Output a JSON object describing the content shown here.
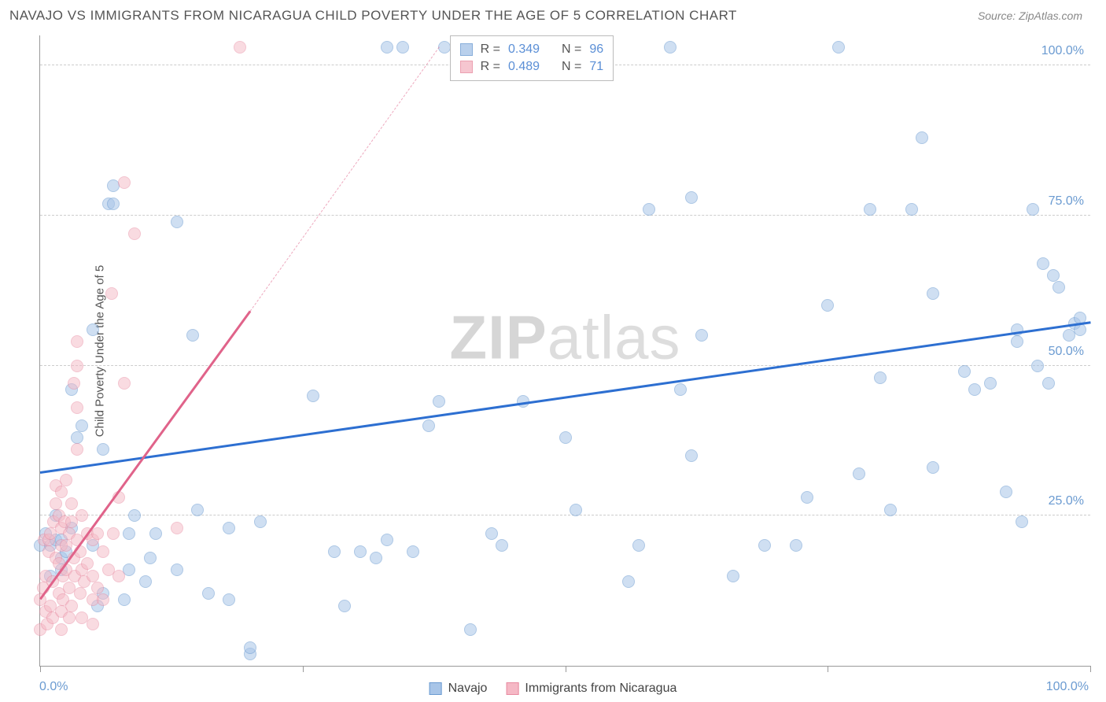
{
  "header": {
    "title": "NAVAJO VS IMMIGRANTS FROM NICARAGUA CHILD POVERTY UNDER THE AGE OF 5 CORRELATION CHART",
    "source_prefix": "Source: ",
    "source_name": "ZipAtlas.com"
  },
  "y_axis_label": "Child Poverty Under the Age of 5",
  "watermark": {
    "part1": "ZIP",
    "part2": "atlas"
  },
  "chart": {
    "type": "scatter",
    "xlim": [
      0,
      100
    ],
    "ylim": [
      0,
      105
    ],
    "x_ticks": [
      0,
      25,
      50,
      75,
      100
    ],
    "y_gridlines": [
      25,
      50,
      75,
      100
    ],
    "x_axis_labels": [
      {
        "value": 0,
        "text": "0.0%"
      },
      {
        "value": 100,
        "text": "100.0%"
      }
    ],
    "y_axis_labels": [
      {
        "value": 25,
        "text": "25.0%"
      },
      {
        "value": 50,
        "text": "50.0%"
      },
      {
        "value": 75,
        "text": "75.0%"
      },
      {
        "value": 100,
        "text": "100.0%"
      }
    ],
    "background_color": "#ffffff",
    "grid_color": "#cccccc",
    "point_radius": 8,
    "point_stroke_width": 1.2,
    "series": [
      {
        "name": "Navajo",
        "fill_color": "#a8c5e8",
        "stroke_color": "#6b9bd1",
        "fill_opacity": 0.55,
        "trend": {
          "color": "#2d6fd1",
          "x1": 0,
          "y1": 32,
          "x2": 100,
          "y2": 57,
          "dashed_extension": false
        },
        "stats": {
          "R": "0.349",
          "N": "96"
        },
        "points": [
          [
            0,
            20
          ],
          [
            0.5,
            22
          ],
          [
            1,
            15
          ],
          [
            1,
            20
          ],
          [
            1.5,
            25
          ],
          [
            1.5,
            21
          ],
          [
            2,
            18
          ],
          [
            2,
            21
          ],
          [
            2.5,
            19
          ],
          [
            2,
            16
          ],
          [
            3,
            46
          ],
          [
            3,
            23
          ],
          [
            3.5,
            38
          ],
          [
            4,
            40
          ],
          [
            5,
            56
          ],
          [
            5,
            20
          ],
          [
            5.5,
            10
          ],
          [
            6,
            36
          ],
          [
            6,
            12
          ],
          [
            6.5,
            77
          ],
          [
            7,
            77
          ],
          [
            7,
            80
          ],
          [
            8,
            11
          ],
          [
            8.5,
            16
          ],
          [
            8.5,
            22
          ],
          [
            9,
            25
          ],
          [
            10,
            14
          ],
          [
            10.5,
            18
          ],
          [
            11,
            22
          ],
          [
            13,
            16
          ],
          [
            13,
            74
          ],
          [
            14.5,
            55
          ],
          [
            15,
            26
          ],
          [
            16,
            12
          ],
          [
            18,
            11
          ],
          [
            18,
            23
          ],
          [
            20,
            2
          ],
          [
            20,
            3
          ],
          [
            21,
            24
          ],
          [
            26,
            45
          ],
          [
            28,
            19
          ],
          [
            29,
            10
          ],
          [
            30.5,
            19
          ],
          [
            32,
            18
          ],
          [
            33,
            21
          ],
          [
            33,
            103
          ],
          [
            34.5,
            103
          ],
          [
            35.5,
            19
          ],
          [
            37,
            40
          ],
          [
            38,
            44
          ],
          [
            38.5,
            103
          ],
          [
            41,
            6
          ],
          [
            43,
            22
          ],
          [
            44,
            20
          ],
          [
            46,
            44
          ],
          [
            50,
            38
          ],
          [
            51,
            26
          ],
          [
            56,
            14
          ],
          [
            57,
            20
          ],
          [
            58,
            76
          ],
          [
            60,
            103
          ],
          [
            61,
            46
          ],
          [
            62,
            78
          ],
          [
            62,
            35
          ],
          [
            63,
            55
          ],
          [
            66,
            15
          ],
          [
            69,
            20
          ],
          [
            72,
            20
          ],
          [
            73,
            28
          ],
          [
            75,
            60
          ],
          [
            76,
            103
          ],
          [
            78,
            32
          ],
          [
            79,
            76
          ],
          [
            80,
            48
          ],
          [
            81,
            26
          ],
          [
            83,
            76
          ],
          [
            84,
            88
          ],
          [
            85,
            33
          ],
          [
            85,
            62
          ],
          [
            88,
            49
          ],
          [
            89,
            46
          ],
          [
            90.5,
            47
          ],
          [
            92,
            29
          ],
          [
            93,
            54
          ],
          [
            93,
            56
          ],
          [
            93.5,
            24
          ],
          [
            94.5,
            76
          ],
          [
            95,
            50
          ],
          [
            95.5,
            67
          ],
          [
            96,
            47
          ],
          [
            96.5,
            65
          ],
          [
            97,
            63
          ],
          [
            98,
            55
          ],
          [
            98.5,
            57
          ],
          [
            99,
            56
          ],
          [
            99,
            58
          ]
        ]
      },
      {
        "name": "Immigrants from Nicaragua",
        "fill_color": "#f5b8c5",
        "stroke_color": "#e88aa0",
        "fill_opacity": 0.5,
        "trend": {
          "color": "#e0638a",
          "x1": 0,
          "y1": 11,
          "x2": 20,
          "y2": 59,
          "dashed_to": [
            38,
            103
          ]
        },
        "stats": {
          "R": "0.489",
          "N": "71"
        },
        "points": [
          [
            0,
            6
          ],
          [
            0,
            11
          ],
          [
            0.3,
            13
          ],
          [
            0.4,
            21
          ],
          [
            0.5,
            9
          ],
          [
            0.5,
            15
          ],
          [
            0.7,
            7
          ],
          [
            0.8,
            19
          ],
          [
            0.8,
            21
          ],
          [
            1,
            10
          ],
          [
            1,
            22
          ],
          [
            1.2,
            8
          ],
          [
            1.2,
            14
          ],
          [
            1.3,
            24
          ],
          [
            1.5,
            18
          ],
          [
            1.5,
            27
          ],
          [
            1.5,
            30
          ],
          [
            1.8,
            12
          ],
          [
            1.8,
            17
          ],
          [
            1.8,
            25
          ],
          [
            2,
            6
          ],
          [
            2,
            9
          ],
          [
            2,
            20
          ],
          [
            2,
            23
          ],
          [
            2,
            29
          ],
          [
            2.2,
            11
          ],
          [
            2.2,
            15
          ],
          [
            2.3,
            24
          ],
          [
            2.5,
            16
          ],
          [
            2.5,
            20
          ],
          [
            2.5,
            31
          ],
          [
            2.8,
            8
          ],
          [
            2.8,
            13
          ],
          [
            2.8,
            22
          ],
          [
            3,
            10
          ],
          [
            3,
            24
          ],
          [
            3,
            27
          ],
          [
            3.2,
            18
          ],
          [
            3.2,
            47
          ],
          [
            3.3,
            15
          ],
          [
            3.5,
            21
          ],
          [
            3.5,
            36
          ],
          [
            3.5,
            43
          ],
          [
            3.5,
            50
          ],
          [
            3.5,
            54
          ],
          [
            3.8,
            12
          ],
          [
            3.8,
            19
          ],
          [
            4,
            8
          ],
          [
            4,
            16
          ],
          [
            4,
            25
          ],
          [
            4.2,
            14
          ],
          [
            4.5,
            17
          ],
          [
            4.5,
            22
          ],
          [
            5,
            7
          ],
          [
            5,
            11
          ],
          [
            5,
            15
          ],
          [
            5,
            21
          ],
          [
            5.5,
            22
          ],
          [
            5.5,
            13
          ],
          [
            6,
            19
          ],
          [
            6,
            11
          ],
          [
            6.5,
            16
          ],
          [
            6.8,
            62
          ],
          [
            7,
            22
          ],
          [
            7.5,
            15
          ],
          [
            7.5,
            28
          ],
          [
            8,
            47
          ],
          [
            8,
            80.5
          ],
          [
            9,
            72
          ],
          [
            13,
            23
          ],
          [
            19,
            103
          ]
        ]
      }
    ]
  },
  "legend_top": {
    "labels": {
      "R": "R =",
      "N": "N ="
    }
  },
  "legend_bottom": {
    "items": [
      "Navajo",
      "Immigrants from Nicaragua"
    ]
  }
}
